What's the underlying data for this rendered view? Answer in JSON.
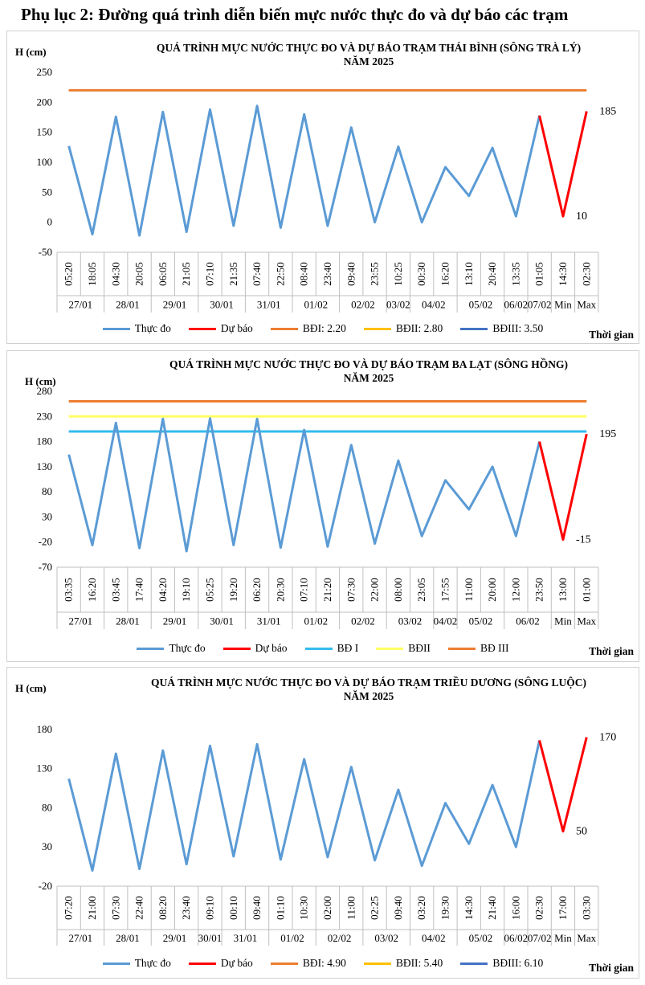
{
  "page": {
    "title": "Phụ lục 2: Đường quá trình diễn biến mực nước thực đo và dự báo các trạm",
    "time_axis_label": "Thời gian"
  },
  "chart_data": [
    {
      "type": "line",
      "title": "QUÁ TRÌNH MỰC NƯỚC THỰC ĐO VÀ DỰ BÁO TRẠM THÁI BÌNH (SÔNG TRÀ LÝ)",
      "subtitle": "NĂM 2025",
      "ylabel": "H (cm)",
      "xlabel": "Thời gian",
      "ylim": [
        -50,
        250
      ],
      "yticks": [
        -50,
        0,
        50,
        100,
        150,
        200,
        250
      ],
      "times": [
        "05:20",
        "18:05",
        "04:30",
        "20:05",
        "06:05",
        "21:05",
        "07:10",
        "21:35",
        "07:40",
        "22:50",
        "08:40",
        "23:40",
        "09:40",
        "23:55",
        "10:25",
        "00:30",
        "16:20",
        "13:10",
        "20:40",
        "13:35",
        "01:05",
        "14:30",
        "02:30"
      ],
      "date_groups": [
        {
          "label": "27/01",
          "count": 2
        },
        {
          "label": "28/01",
          "count": 2
        },
        {
          "label": "29/01",
          "count": 2
        },
        {
          "label": "30/01",
          "count": 2
        },
        {
          "label": "31/01",
          "count": 2
        },
        {
          "label": "01/02",
          "count": 2
        },
        {
          "label": "02/02",
          "count": 2
        },
        {
          "label": "03/02",
          "count": 1
        },
        {
          "label": "04/02",
          "count": 2
        },
        {
          "label": "05/02",
          "count": 2
        },
        {
          "label": "06/02",
          "count": 1
        },
        {
          "label": "07/02",
          "count": 1
        },
        {
          "label": "Min",
          "count": 1
        },
        {
          "label": "Max",
          "count": 1
        }
      ],
      "series": [
        {
          "name": "Thực đo",
          "color": "#5b9bd5",
          "values": [
            127,
            -20,
            176,
            -22,
            184,
            -16,
            188,
            -6,
            194,
            -9,
            180,
            -6,
            158,
            0,
            126,
            0,
            92,
            44,
            124,
            10,
            178,
            null,
            null
          ]
        },
        {
          "name": "Dự báo",
          "color": "#ff0000",
          "values": [
            null,
            null,
            null,
            null,
            null,
            null,
            null,
            null,
            null,
            null,
            null,
            null,
            null,
            null,
            null,
            null,
            null,
            null,
            null,
            null,
            178,
            10,
            185
          ]
        }
      ],
      "thresholds": [
        {
          "name": "BĐI: 2.20",
          "value": 220,
          "color": "#ed7d31",
          "drawn": true
        },
        {
          "name": "BĐII: 2.80",
          "value": 280,
          "color": "#ffc000",
          "drawn": false
        },
        {
          "name": "BĐIII: 3.50",
          "value": 350,
          "color": "#4472c4",
          "drawn": false
        }
      ],
      "annotations": [
        {
          "text": "185",
          "index": 22,
          "value": 185,
          "pos": "right"
        },
        {
          "text": "10",
          "index": 21,
          "value": 10,
          "pos": "right"
        }
      ],
      "legend": [
        "Thực đo",
        "Dự báo",
        "BĐI: 2.20",
        "BĐII: 2.80",
        "BĐIII: 3.50"
      ],
      "legend_colors": [
        "#5b9bd5",
        "#ff0000",
        "#ed7d31",
        "#ffc000",
        "#4472c4"
      ]
    },
    {
      "type": "line",
      "title": "QUÁ TRÌNH MỰC NƯỚC THỰC ĐO VÀ DỰ BÁO TRẠM BA LẠT (SÔNG HỒNG)",
      "subtitle": "NĂM 2025",
      "ylabel": "H (cm)",
      "xlabel": "Thời gian",
      "ylim": [
        -70,
        280
      ],
      "yticks": [
        -70,
        -20,
        30,
        80,
        130,
        180,
        230,
        280
      ],
      "times": [
        "03:35",
        "16:20",
        "03:45",
        "17:40",
        "04:20",
        "19:10",
        "05:25",
        "19:20",
        "06:20",
        "20:30",
        "07:10",
        "21:20",
        "07:30",
        "22:00",
        "08:00",
        "23:05",
        "17:55",
        "11:00",
        "20:00",
        "12:00",
        "23:50",
        "13:00",
        "01:00"
      ],
      "date_groups": [
        {
          "label": "27/01",
          "count": 2
        },
        {
          "label": "28/01",
          "count": 2
        },
        {
          "label": "29/01",
          "count": 2
        },
        {
          "label": "30/01",
          "count": 2
        },
        {
          "label": "31/01",
          "count": 2
        },
        {
          "label": "01/02",
          "count": 2
        },
        {
          "label": "02/02",
          "count": 2
        },
        {
          "label": "03/02",
          "count": 2
        },
        {
          "label": "04/02",
          "count": 1
        },
        {
          "label": "05/02",
          "count": 2
        },
        {
          "label": "06/02",
          "count": 2
        },
        {
          "label": "Min",
          "count": 1
        },
        {
          "label": "Max",
          "count": 1
        }
      ],
      "series": [
        {
          "name": "Thực đo",
          "color": "#5b9bd5",
          "values": [
            154,
            -26,
            217,
            -32,
            225,
            -38,
            226,
            -26,
            225,
            -31,
            203,
            -29,
            173,
            -23,
            142,
            -8,
            103,
            45,
            130,
            -8,
            180,
            null,
            null
          ]
        },
        {
          "name": "Dự báo",
          "color": "#ff0000",
          "values": [
            null,
            null,
            null,
            null,
            null,
            null,
            null,
            null,
            null,
            null,
            null,
            null,
            null,
            null,
            null,
            null,
            null,
            null,
            null,
            null,
            180,
            -15,
            195
          ]
        }
      ],
      "thresholds": [
        {
          "name": "BĐ I",
          "value": 200,
          "color": "#33bbee",
          "drawn": true
        },
        {
          "name": "BĐII",
          "value": 230,
          "color": "#ffff66",
          "drawn": true
        },
        {
          "name": "BĐ III",
          "value": 260,
          "color": "#ed7d31",
          "drawn": true
        }
      ],
      "annotations": [
        {
          "text": "195",
          "index": 22,
          "value": 195,
          "pos": "right"
        },
        {
          "text": "-15",
          "index": 21,
          "value": -15,
          "pos": "right"
        }
      ],
      "legend": [
        "Thực đo",
        "Dự báo",
        "BĐ I",
        "BĐII",
        "BĐ III"
      ],
      "legend_colors": [
        "#5b9bd5",
        "#ff0000",
        "#33bbee",
        "#ffff66",
        "#ed7d31"
      ]
    },
    {
      "type": "line",
      "title": "QUÁ TRÌNH MỰC NƯỚC THỰC ĐO VÀ DỰ BÁO TRẠM TRIỀU DƯƠNG (SÔNG LUỘC)",
      "subtitle": "NĂM 2025",
      "ylabel": "H (cm)",
      "xlabel": "Thời gian",
      "ylim": [
        -20,
        230
      ],
      "yticks": [
        -20,
        30,
        80,
        130,
        180
      ],
      "times": [
        "07:20",
        "21:00",
        "07:30",
        "22:40",
        "08:20",
        "23:40",
        "09:10",
        "00:10",
        "09:40",
        "01:10",
        "10:30",
        "02:00",
        "11:00",
        "02:25",
        "09:40",
        "03:20",
        "19:30",
        "14:30",
        "21:40",
        "16:00",
        "02:30",
        "17:00",
        "03:30"
      ],
      "date_groups": [
        {
          "label": "27/01",
          "count": 2
        },
        {
          "label": "28/01",
          "count": 2
        },
        {
          "label": "29/01",
          "count": 2
        },
        {
          "label": "30/01",
          "count": 1
        },
        {
          "label": "31/01",
          "count": 2
        },
        {
          "label": "01/02",
          "count": 2
        },
        {
          "label": "02/02",
          "count": 2
        },
        {
          "label": "03/02",
          "count": 2
        },
        {
          "label": "04/02",
          "count": 2
        },
        {
          "label": "05/02",
          "count": 2
        },
        {
          "label": "06/02",
          "count": 1
        },
        {
          "label": "07/02",
          "count": 1
        },
        {
          "label": "Min",
          "count": 1
        },
        {
          "label": "Max",
          "count": 1
        }
      ],
      "series": [
        {
          "name": "Thực đo",
          "color": "#5b9bd5",
          "values": [
            117,
            0,
            149,
            2,
            153,
            8,
            159,
            18,
            161,
            14,
            142,
            17,
            132,
            13,
            103,
            6,
            86,
            34,
            109,
            30,
            166,
            null,
            null
          ]
        },
        {
          "name": "Dự báo",
          "color": "#ff0000",
          "values": [
            null,
            null,
            null,
            null,
            null,
            null,
            null,
            null,
            null,
            null,
            null,
            null,
            null,
            null,
            null,
            null,
            null,
            null,
            null,
            null,
            166,
            50,
            170
          ]
        }
      ],
      "thresholds": [
        {
          "name": "BĐI: 4.90",
          "value": 490,
          "color": "#ed7d31",
          "drawn": false
        },
        {
          "name": "BĐII: 5.40",
          "value": 540,
          "color": "#ffc000",
          "drawn": false
        },
        {
          "name": "BĐIII: 6.10",
          "value": 610,
          "color": "#4472c4",
          "drawn": false
        }
      ],
      "annotations": [
        {
          "text": "170",
          "index": 22,
          "value": 170,
          "pos": "right"
        },
        {
          "text": "50",
          "index": 21,
          "value": 50,
          "pos": "right"
        }
      ],
      "legend": [
        "Thực đo",
        "Dự báo",
        "BĐI: 4.90",
        "BĐII: 5.40",
        "BĐIII: 6.10"
      ],
      "legend_colors": [
        "#5b9bd5",
        "#ff0000",
        "#ed7d31",
        "#ffc000",
        "#4472c4"
      ]
    }
  ]
}
